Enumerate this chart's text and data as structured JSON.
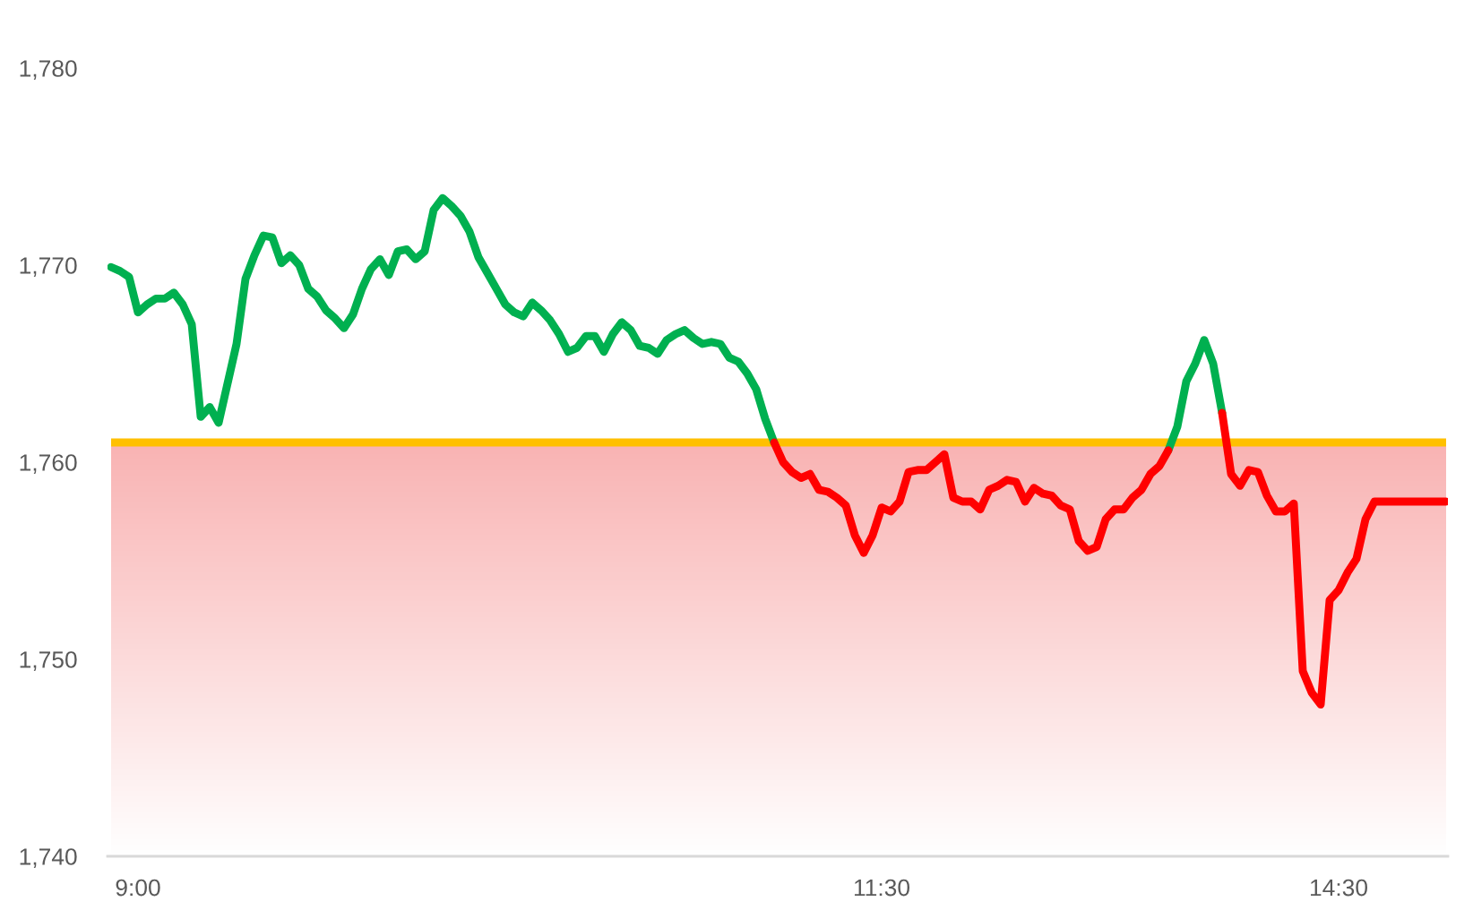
{
  "chart_data": {
    "type": "line",
    "categories": [
      null,
      null,
      null,
      "9:00",
      null,
      null,
      null,
      null,
      null,
      null,
      null,
      null,
      null,
      null,
      null,
      null,
      null,
      null,
      null,
      null,
      null,
      null,
      null,
      null,
      null,
      null,
      null,
      null,
      null,
      null,
      null,
      null,
      null,
      null,
      null,
      null,
      null,
      null,
      null,
      null,
      null,
      null,
      null,
      null,
      null,
      null,
      null,
      null,
      null,
      null,
      null,
      null,
      null,
      null,
      null,
      null,
      null,
      null,
      null,
      null,
      null,
      null,
      null,
      null,
      null,
      null,
      null,
      null,
      null,
      null,
      null,
      null,
      null,
      null,
      null,
      null,
      null,
      null,
      null,
      null,
      null,
      null,
      null,
      null,
      null,
      null,
      "11:30",
      null,
      null,
      null,
      null,
      null,
      null,
      null,
      null,
      null,
      null,
      null,
      null,
      null,
      null,
      null,
      null,
      null,
      null,
      null,
      null,
      null,
      null,
      null,
      null,
      null,
      null,
      null,
      null,
      null,
      null,
      null,
      null,
      null,
      null,
      null,
      null,
      null,
      null,
      null,
      null,
      null,
      null,
      null,
      null,
      null,
      null,
      null,
      null,
      null,
      null,
      "14:30",
      null,
      null,
      null,
      null,
      null,
      null,
      null,
      null,
      null,
      null,
      null,
      null
    ],
    "series": [
      {
        "color": "#00b050",
        "values": [
          1769.9,
          1769.7,
          1769.4,
          1767.6,
          1768.0,
          1768.3,
          1768.3,
          1768.6,
          1768.0,
          1767.0,
          1762.3,
          1762.8,
          1762.0,
          1764.0,
          1766.0,
          1769.3,
          1770.5,
          1771.5,
          1771.4,
          1770.1,
          1770.5,
          1770.0,
          1768.8,
          1768.4,
          1767.7,
          1767.3,
          1766.8,
          1767.5,
          1768.8,
          1769.8,
          1770.3,
          1769.5,
          1770.7,
          1770.8,
          1770.3,
          1770.7,
          1772.8,
          1773.4,
          1773.0,
          1772.5,
          1771.7,
          1770.4,
          1769.6,
          1768.8,
          1768.0,
          1767.6,
          1767.4,
          1768.1,
          1767.7,
          1767.2,
          1766.5,
          1765.6,
          1765.8,
          1766.4,
          1766.4,
          1765.6,
          1766.5,
          1767.1,
          1766.7,
          1765.9,
          1765.8,
          1765.5,
          1766.2,
          1766.5,
          1766.7,
          1766.3,
          1766.0,
          1766.1,
          1766.0,
          1765.3,
          1765.1,
          1764.5,
          1763.7,
          1762.2,
          1761.0,
          null,
          null,
          null,
          null,
          null,
          null,
          null,
          null,
          null,
          null,
          null,
          null,
          null,
          null,
          null,
          null,
          null,
          null,
          null,
          null,
          null,
          null,
          null,
          null,
          null,
          null,
          null,
          null,
          null,
          null,
          null,
          null,
          null,
          null,
          null,
          null,
          null,
          null,
          null,
          null,
          null,
          null,
          null,
          1760.6,
          1761.8,
          1764.1,
          1765.0,
          1766.2,
          1765.0,
          1762.5,
          null,
          null,
          null,
          null,
          null,
          null,
          null,
          null,
          null,
          null,
          null,
          null,
          null,
          null,
          null,
          null,
          null,
          null,
          null,
          null,
          null,
          null,
          null,
          null,
          null
        ]
      },
      {
        "color": "#ff0000",
        "values": [
          null,
          null,
          null,
          null,
          null,
          null,
          null,
          null,
          null,
          null,
          null,
          null,
          null,
          null,
          null,
          null,
          null,
          null,
          null,
          null,
          null,
          null,
          null,
          null,
          null,
          null,
          null,
          null,
          null,
          null,
          null,
          null,
          null,
          null,
          null,
          null,
          null,
          null,
          null,
          null,
          null,
          null,
          null,
          null,
          null,
          null,
          null,
          null,
          null,
          null,
          null,
          null,
          null,
          null,
          null,
          null,
          null,
          null,
          null,
          null,
          null,
          null,
          null,
          null,
          null,
          null,
          null,
          null,
          null,
          null,
          null,
          null,
          null,
          null,
          1761.0,
          1760.0,
          1759.5,
          1759.2,
          1759.4,
          1758.6,
          1758.5,
          1758.2,
          1757.8,
          1756.3,
          1755.4,
          1756.3,
          1757.7,
          1757.5,
          1758.0,
          1759.5,
          1759.6,
          1759.6,
          1760.0,
          1760.4,
          1758.2,
          1758.0,
          1758.0,
          1757.6,
          1758.6,
          1758.8,
          1759.1,
          1759.0,
          1758.0,
          1758.7,
          1758.4,
          1758.3,
          1757.8,
          1757.6,
          1756.0,
          1755.5,
          1755.7,
          1757.1,
          1757.6,
          1757.6,
          1758.2,
          1758.6,
          1759.4,
          1759.8,
          1760.6,
          null,
          null,
          null,
          null,
          null,
          1762.5,
          1759.4,
          1758.8,
          1759.6,
          1759.5,
          1758.3,
          1757.5,
          1757.5,
          1757.9,
          1749.4,
          1748.3,
          1747.7,
          1753.0,
          1753.5,
          1754.4,
          1755.1,
          1757.1,
          1758.0,
          1758.0,
          1758.0,
          1758.0,
          1758.0,
          1758.0,
          1758.0,
          1758.0,
          1758.0
        ]
      }
    ],
    "ylim": [
      1740,
      1780
    ],
    "yticks": [
      {
        "value": 1740,
        "label": "1,740"
      },
      {
        "value": 1750,
        "label": "1,750"
      },
      {
        "value": 1760,
        "label": "1,760"
      },
      {
        "value": 1770,
        "label": "1,770"
      },
      {
        "value": 1780,
        "label": "1,780"
      }
    ],
    "ref_lines": [
      {
        "axis": "y",
        "value": 1761,
        "color": "#ffc000"
      }
    ],
    "bands": [
      {
        "axis": "y",
        "from": 1740,
        "to": 1761,
        "color": "#f9b3b3"
      }
    ],
    "grid": false,
    "line_style": "solid"
  }
}
